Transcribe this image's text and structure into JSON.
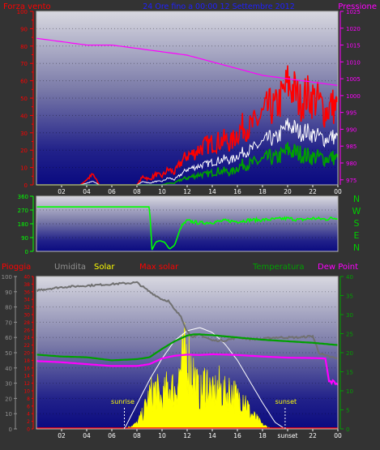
{
  "header": {
    "left_label": "Forza vento",
    "center_label": "24 Ore fino a 00:00 12 Settembre 2012",
    "right_label": "Pressione"
  },
  "colors": {
    "background": "#333333",
    "wind": "#ff0000",
    "gust": "#ffffff",
    "wind_green": "#00a000",
    "pressure": "#ff00ff",
    "direction": "#00ff00",
    "rain": "#ff0000",
    "humidity": "#808080",
    "solar": "#ffff00",
    "max_solar": "#ffffff",
    "temperature": "#00a000",
    "dew_point": "#ff00ff"
  },
  "chart_data": [
    {
      "type": "line",
      "name": "wind-pressure-chart",
      "left_axis": {
        "label": "Forza vento",
        "ylim": [
          0,
          100
        ],
        "ticks": [
          0,
          5,
          10,
          15,
          20,
          25,
          30,
          35,
          40,
          45,
          50,
          55,
          60,
          65,
          70,
          75,
          80,
          85,
          90,
          95,
          100
        ]
      },
      "right_axis": {
        "label": "Pressione",
        "ylim": [
          973.5,
          1025
        ],
        "ticks": [
          975,
          980,
          985,
          990,
          995,
          1000,
          1005,
          1010,
          1015,
          1020,
          1025
        ]
      },
      "x_ticks": [
        "02",
        "04",
        "06",
        "08",
        "10",
        "12",
        "14",
        "16",
        "18",
        "20",
        "22",
        "00"
      ],
      "wind_series": {
        "x": [
          0,
          2,
          3.5,
          4.5,
          5,
          8,
          8.5,
          9,
          9.5,
          10,
          10.5,
          11,
          11.5,
          12,
          12.5,
          13,
          13.5,
          14,
          14.5,
          15,
          15.5,
          16,
          16.5,
          17,
          17.5,
          18,
          18.5,
          19,
          19.5,
          20,
          20.5,
          21,
          21.5,
          22,
          22.5,
          23,
          23.5,
          24
        ],
        "gust": [
          0,
          0,
          0,
          6,
          0,
          0,
          5,
          3,
          6,
          5,
          9,
          7,
          13,
          17,
          18,
          21,
          23,
          24,
          25,
          26,
          24,
          30,
          34,
          33,
          36,
          40,
          45,
          44,
          50,
          58,
          55,
          48,
          52,
          50,
          48,
          42,
          46,
          44
        ],
        "average": [
          0,
          0,
          0,
          2,
          0,
          0,
          2,
          1,
          2,
          2,
          4,
          3,
          6,
          9,
          10,
          11,
          12,
          13,
          14,
          15,
          14,
          17,
          19,
          20,
          22,
          24,
          27,
          26,
          30,
          34,
          33,
          30,
          31,
          29,
          28,
          26,
          28,
          27
        ],
        "lull": [
          0,
          0,
          0,
          0,
          0,
          0,
          0,
          0,
          0,
          0,
          1,
          1,
          3,
          4,
          5,
          6,
          6,
          7,
          8,
          8,
          7,
          10,
          12,
          12,
          13,
          14,
          16,
          15,
          17,
          20,
          19,
          18,
          17,
          16,
          16,
          15,
          16,
          15
        ]
      },
      "pressure_series": {
        "x": [
          0,
          2,
          4,
          6,
          8,
          10,
          12,
          14,
          16,
          18,
          20,
          22,
          24
        ],
        "values": [
          1017,
          1016,
          1015,
          1015,
          1014,
          1013,
          1012,
          1010,
          1008,
          1006,
          1005,
          1004,
          1003
        ]
      }
    },
    {
      "type": "line",
      "name": "wind-direction-chart",
      "left_axis": {
        "ylim": [
          0,
          360
        ],
        "ticks": [
          0,
          90,
          180,
          270,
          360
        ]
      },
      "right_labels": [
        "N",
        "W",
        "S",
        "E",
        "N"
      ],
      "x_ticks": [
        "02",
        "04",
        "06",
        "08",
        "10",
        "12",
        "14",
        "16",
        "18",
        "20",
        "22",
        "00"
      ],
      "series": {
        "x": [
          0,
          9,
          9.2,
          9.5,
          9.8,
          10.2,
          10.6,
          11,
          11.5,
          12,
          13,
          14,
          15,
          16,
          17,
          18,
          19,
          20,
          21,
          22,
          23,
          24
        ],
        "values": [
          290,
          290,
          10,
          60,
          70,
          60,
          15,
          40,
          160,
          200,
          185,
          190,
          200,
          195,
          205,
          205,
          210,
          215,
          205,
          215,
          210,
          220
        ]
      }
    },
    {
      "type": "line",
      "name": "weather-chart",
      "legend": [
        "Pioggia",
        "Umidita",
        "Solar",
        "Max solar",
        "Temperatura",
        "Dew Point"
      ],
      "left_axis_humidity": {
        "ylim": [
          0,
          100
        ],
        "ticks": [
          0,
          10,
          20,
          30,
          40,
          50,
          60,
          70,
          80,
          90,
          100
        ]
      },
      "left_axis_rain": {
        "ylim": [
          0,
          40
        ],
        "ticks": [
          0,
          2,
          4,
          6,
          8,
          10,
          12,
          14,
          16,
          18,
          20,
          22,
          24,
          26,
          28,
          30,
          32,
          34,
          36,
          38,
          40
        ]
      },
      "right_axis": {
        "ylim": [
          0,
          40
        ],
        "ticks": [
          0,
          5,
          10,
          15,
          20,
          25,
          30,
          35,
          40
        ]
      },
      "x_ticks": [
        "02",
        "04",
        "06",
        "08",
        "10",
        "12",
        "14",
        "16",
        "18",
        "sunset",
        "22",
        "00"
      ],
      "annotations": {
        "sunrise_label": "sunrise",
        "sunrise_hour": 7.0,
        "sunset_label": "sunset",
        "sunset_hour": 19.8
      },
      "humidity": {
        "x": [
          0,
          1,
          2,
          4,
          6,
          8,
          9,
          10,
          10.5,
          11,
          11.5,
          12,
          12.5,
          13,
          14,
          15,
          16,
          17,
          18,
          19,
          20,
          21,
          22,
          22.5,
          23,
          24
        ],
        "values": [
          91,
          92,
          93,
          94,
          95,
          96,
          90,
          85,
          84,
          78,
          74,
          64,
          60,
          62,
          58,
          58,
          60,
          59,
          59,
          60,
          60,
          60,
          61,
          50,
          48,
          46
        ]
      },
      "temperature": {
        "x": [
          0,
          2,
          4,
          6,
          8,
          9,
          10,
          11,
          12,
          12.5,
          13,
          14,
          16,
          18,
          20,
          22,
          24
        ],
        "values": [
          19.5,
          19,
          18.8,
          18,
          18.3,
          18.8,
          21,
          23,
          24.5,
          24.8,
          24.8,
          24.6,
          24,
          23.4,
          23,
          22.6,
          22
        ]
      },
      "dew_point": {
        "x": [
          0,
          2,
          4,
          6,
          8,
          9,
          10,
          11,
          12,
          13,
          14,
          16,
          18,
          20,
          22,
          23,
          23.3,
          24
        ],
        "values": [
          17.8,
          17.5,
          17,
          16.5,
          16.5,
          17,
          18.5,
          19.2,
          19.5,
          19.4,
          19.6,
          19.4,
          19,
          18.7,
          18.6,
          18.5,
          12.5,
          12
        ]
      },
      "max_solar": {
        "x": [
          7,
          8,
          9,
          10,
          11,
          12,
          13,
          14,
          15,
          16,
          17,
          18,
          19,
          19.8
        ],
        "values": [
          0,
          150,
          300,
          430,
          540,
          600,
          620,
          590,
          520,
          420,
          290,
          160,
          40,
          0
        ],
        "scale_max": 620
      },
      "solar": {
        "x": [
          7,
          8,
          8.5,
          9,
          9.5,
          10,
          10.5,
          11,
          11.5,
          12,
          12.5,
          13,
          13.5,
          14,
          14.5,
          15,
          15.5,
          16,
          16.5,
          17,
          17.5,
          18,
          18.5,
          19
        ],
        "values": [
          0,
          40,
          120,
          250,
          300,
          210,
          330,
          290,
          450,
          580,
          420,
          240,
          380,
          250,
          320,
          260,
          300,
          220,
          260,
          120,
          80,
          30,
          10,
          0
        ]
      },
      "rain": {
        "x": [
          0,
          24
        ],
        "values": [
          0,
          0
        ]
      }
    }
  ]
}
